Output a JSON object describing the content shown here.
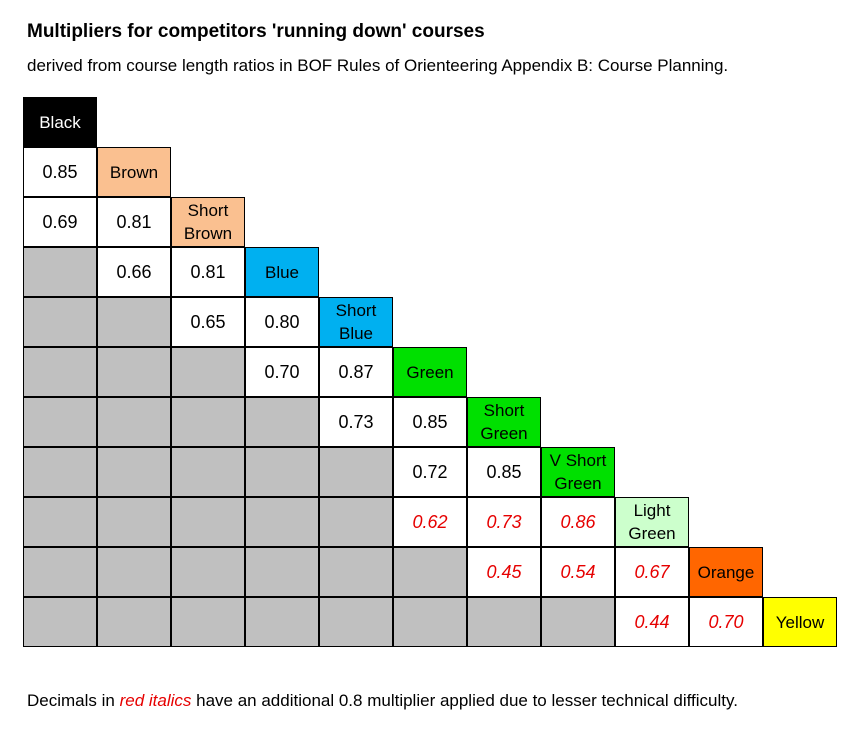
{
  "title": "Multipliers for competitors 'running down' courses",
  "subtitle": "derived from course length ratios in BOF Rules of Orienteering Appendix B: Course Planning.",
  "courses": [
    {
      "label": "Black",
      "color": "#000000",
      "text_color": "#ffffff"
    },
    {
      "label": "Brown",
      "color": "#fac090",
      "text_color": "#000000"
    },
    {
      "label": "Short Brown",
      "color": "#fac090",
      "text_color": "#000000"
    },
    {
      "label": "Blue",
      "color": "#00b0f0",
      "text_color": "#000000"
    },
    {
      "label": "Short Blue",
      "color": "#00b0f0",
      "text_color": "#000000"
    },
    {
      "label": "Green",
      "color": "#00e000",
      "text_color": "#000000"
    },
    {
      "label": "Short Green",
      "color": "#00e000",
      "text_color": "#000000"
    },
    {
      "label": "V Short Green",
      "color": "#00e000",
      "text_color": "#000000"
    },
    {
      "label": "Light Green",
      "color": "#ccffcc",
      "text_color": "#000000"
    },
    {
      "label": "Orange",
      "color": "#ff6600",
      "text_color": "#000000"
    },
    {
      "label": "Yellow",
      "color": "#ffff00",
      "text_color": "#000000"
    }
  ],
  "values": [
    {
      "row": 1,
      "col": 0,
      "text": "0.85",
      "red": false
    },
    {
      "row": 2,
      "col": 0,
      "text": "0.69",
      "red": false
    },
    {
      "row": 2,
      "col": 1,
      "text": "0.81",
      "red": false
    },
    {
      "row": 3,
      "col": 1,
      "text": "0.66",
      "red": false
    },
    {
      "row": 3,
      "col": 2,
      "text": "0.81",
      "red": false
    },
    {
      "row": 4,
      "col": 2,
      "text": "0.65",
      "red": false
    },
    {
      "row": 4,
      "col": 3,
      "text": "0.80",
      "red": false
    },
    {
      "row": 5,
      "col": 3,
      "text": "0.70",
      "red": false
    },
    {
      "row": 5,
      "col": 4,
      "text": "0.87",
      "red": false
    },
    {
      "row": 6,
      "col": 4,
      "text": "0.73",
      "red": false
    },
    {
      "row": 6,
      "col": 5,
      "text": "0.85",
      "red": false
    },
    {
      "row": 7,
      "col": 5,
      "text": "0.72",
      "red": false
    },
    {
      "row": 7,
      "col": 6,
      "text": "0.85",
      "red": false
    },
    {
      "row": 8,
      "col": 5,
      "text": "0.62",
      "red": true
    },
    {
      "row": 8,
      "col": 6,
      "text": "0.73",
      "red": true
    },
    {
      "row": 8,
      "col": 7,
      "text": "0.86",
      "red": true
    },
    {
      "row": 9,
      "col": 6,
      "text": "0.45",
      "red": true
    },
    {
      "row": 9,
      "col": 7,
      "text": "0.54",
      "red": true
    },
    {
      "row": 9,
      "col": 8,
      "text": "0.67",
      "red": true
    },
    {
      "row": 10,
      "col": 8,
      "text": "0.44",
      "red": true
    },
    {
      "row": 10,
      "col": 9,
      "text": "0.70",
      "red": true
    }
  ],
  "red_color": "#e60000",
  "grey_color": "#c0c0c0",
  "footnote": {
    "prefix": "Decimals in ",
    "highlight": "red italics",
    "suffix": " have an additional 0.8 multiplier applied due to lesser technical difficulty."
  }
}
